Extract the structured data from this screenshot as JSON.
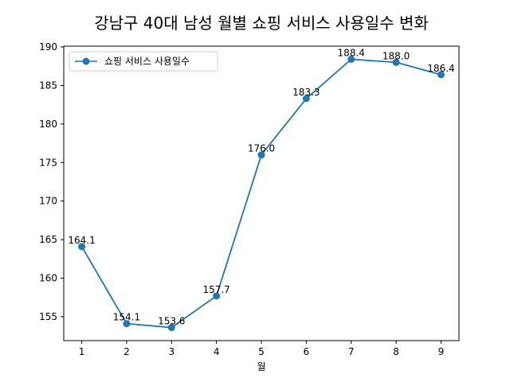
{
  "chart_data": {
    "type": "line",
    "title": "강남구 40대 남성 월별 쇼핑 서비스 사용일수 변화",
    "xlabel": "월",
    "ylabel": "",
    "x": [
      1,
      2,
      3,
      4,
      5,
      6,
      7,
      8,
      9
    ],
    "x_ticks": [
      "1",
      "2",
      "3",
      "4",
      "5",
      "6",
      "7",
      "8",
      "9"
    ],
    "y_ticks": [
      155,
      160,
      165,
      170,
      175,
      180,
      185,
      190
    ],
    "ylim": [
      151.9,
      190.1
    ],
    "xlim": [
      0.6,
      9.4
    ],
    "series": [
      {
        "name": "쇼핑 서비스 사용일수",
        "values": [
          164.1,
          154.1,
          153.6,
          157.7,
          176.0,
          183.3,
          188.4,
          188.0,
          186.4
        ],
        "labels": [
          "164.1",
          "154.1",
          "153.6",
          "157.7",
          "176.0",
          "183.3",
          "188.4",
          "188.0",
          "186.4"
        ],
        "color": "#1f77b4",
        "marker": "circle"
      }
    ],
    "legend_position": "top-left",
    "grid": false
  }
}
